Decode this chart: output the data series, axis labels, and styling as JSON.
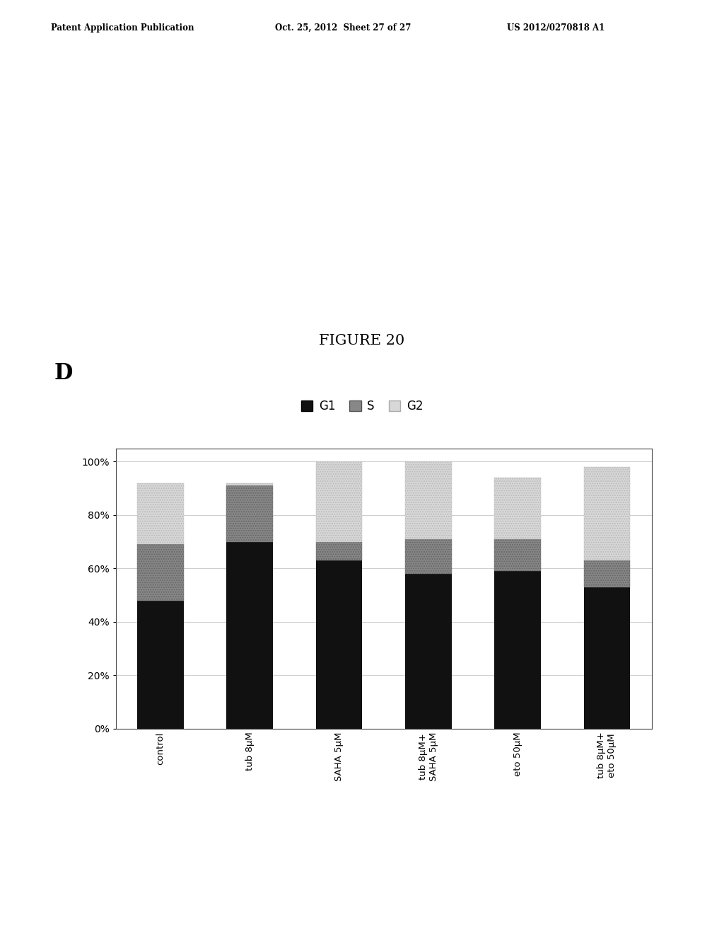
{
  "categories": [
    "control",
    "tub 8μM",
    "SAHA 5μM",
    "tub 8μM+\nSAHA 5μM",
    "eto 50μM",
    "tub 8μM+\neto 50μM"
  ],
  "G1": [
    0.48,
    0.7,
    0.63,
    0.58,
    0.59,
    0.53
  ],
  "S": [
    0.21,
    0.21,
    0.07,
    0.13,
    0.12,
    0.1
  ],
  "G2": [
    0.23,
    0.01,
    0.3,
    0.29,
    0.23,
    0.35
  ],
  "title": "FIGURE 20",
  "panel_label": "D",
  "legend_labels": [
    "G1",
    "S",
    "G2"
  ],
  "G1_color": "#111111",
  "S_color": "#888888",
  "G2_color": "#d8d8d8",
  "background_color": "#ffffff",
  "yticks": [
    0.0,
    0.2,
    0.4,
    0.6,
    0.8,
    1.0
  ],
  "ytick_labels": [
    "0%",
    "20%",
    "40%",
    "60%",
    "80%",
    "100%"
  ],
  "header_left": "Patent Application Publication",
  "header_center": "Oct. 25, 2012  Sheet 27 of 27",
  "header_right": "US 2012/0270818 A1"
}
